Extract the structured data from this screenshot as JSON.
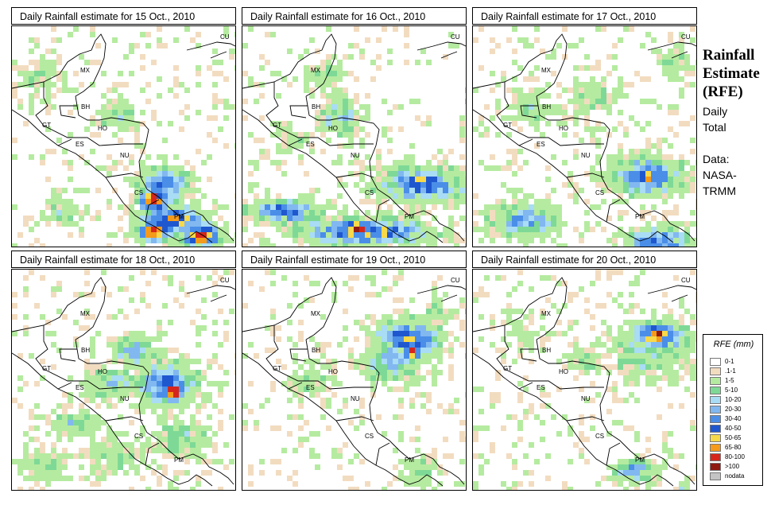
{
  "panels": [
    {
      "title": "Daily Rainfall estimate for  15 Oct., 2010",
      "seed": 15,
      "blobs": [
        [
          190,
          195,
          30,
          22,
          4.0
        ],
        [
          175,
          215,
          18,
          14,
          6.5
        ],
        [
          200,
          240,
          40,
          18,
          5.0
        ],
        [
          175,
          255,
          20,
          12,
          6.8
        ],
        [
          235,
          260,
          25,
          14,
          6.2
        ],
        [
          230,
          285,
          35,
          12,
          6.5
        ],
        [
          130,
          110,
          25,
          18,
          2.2
        ],
        [
          30,
          60,
          25,
          20,
          1.5
        ],
        [
          60,
          230,
          25,
          20,
          1.8
        ]
      ]
    },
    {
      "title": "Daily Rainfall estimate for  16 Oct., 2010",
      "seed": 16,
      "blobs": [
        [
          225,
          195,
          55,
          22,
          4.2
        ],
        [
          220,
          190,
          20,
          10,
          5.6
        ],
        [
          150,
          255,
          80,
          16,
          4.8
        ],
        [
          140,
          250,
          20,
          10,
          6.6
        ],
        [
          50,
          230,
          45,
          14,
          4.5
        ],
        [
          120,
          110,
          25,
          25,
          2.6
        ],
        [
          100,
          60,
          25,
          20,
          1.6
        ],
        [
          60,
          140,
          20,
          15,
          1.8
        ]
      ]
    },
    {
      "title": "Daily Rainfall estimate for  17 Oct., 2010",
      "seed": 17,
      "blobs": [
        [
          215,
          185,
          45,
          24,
          4.2
        ],
        [
          215,
          190,
          10,
          8,
          5.6
        ],
        [
          230,
          270,
          40,
          20,
          4.3
        ],
        [
          60,
          240,
          45,
          22,
          3.2
        ],
        [
          150,
          85,
          30,
          20,
          1.8
        ],
        [
          70,
          100,
          30,
          20,
          1.6
        ],
        [
          250,
          40,
          20,
          20,
          1.7
        ]
      ]
    },
    {
      "title": "Daily Rainfall estimate for  18 Oct., 2010",
      "seed": 18,
      "blobs": [
        [
          190,
          140,
          40,
          26,
          4.0
        ],
        [
          200,
          150,
          15,
          12,
          6.5
        ],
        [
          150,
          100,
          25,
          20,
          3.0
        ],
        [
          120,
          140,
          30,
          20,
          2.8
        ],
        [
          80,
          190,
          30,
          15,
          2.5
        ],
        [
          35,
          240,
          25,
          20,
          2.0
        ],
        [
          210,
          210,
          40,
          30,
          1.8
        ],
        [
          130,
          230,
          40,
          25,
          1.6
        ]
      ]
    },
    {
      "title": "Daily Rainfall estimate for  19 Oct., 2010",
      "seed": 19,
      "blobs": [
        [
          205,
          85,
          40,
          25,
          4.6
        ],
        [
          210,
          100,
          15,
          12,
          5.8
        ],
        [
          190,
          110,
          30,
          30,
          3.0
        ],
        [
          170,
          120,
          25,
          20,
          2.4
        ],
        [
          80,
          140,
          30,
          20,
          1.6
        ],
        [
          240,
          50,
          20,
          20,
          1.6
        ],
        [
          220,
          250,
          20,
          20,
          1.8
        ]
      ]
    },
    {
      "title": "Daily Rainfall estimate for  20 Oct., 2010",
      "seed": 20,
      "blobs": [
        [
          230,
          80,
          35,
          18,
          5.0
        ],
        [
          228,
          80,
          20,
          10,
          6.9
        ],
        [
          220,
          100,
          50,
          30,
          2.4
        ],
        [
          200,
          250,
          25,
          15,
          3.6
        ],
        [
          260,
          280,
          10,
          10,
          4.0
        ],
        [
          140,
          110,
          25,
          20,
          1.6
        ],
        [
          60,
          80,
          25,
          20,
          1.4
        ]
      ]
    }
  ],
  "region_labels": [
    "MX",
    "CU",
    "BH",
    "GT",
    "HO",
    "ES",
    "NU",
    "CS",
    "PM"
  ],
  "side": {
    "title_lines": [
      "Rainfall",
      "Estimate",
      "(RFE)"
    ],
    "daily_lines": [
      "Daily",
      "Total"
    ],
    "data_lines": [
      "Data:",
      "NASA-",
      "TRMM"
    ]
  },
  "legend": {
    "title": "RFE (mm)",
    "items": [
      {
        "label": "0-1",
        "color": "#ffffff"
      },
      {
        "label": ".1-1",
        "color": "#f2dcc0"
      },
      {
        "label": "1-5",
        "color": "#b5eba0"
      },
      {
        "label": "5-10",
        "color": "#7ed996"
      },
      {
        "label": "10-20",
        "color": "#a9dcf5"
      },
      {
        "label": "20-30",
        "color": "#82b8f0"
      },
      {
        "label": "30-40",
        "color": "#4a8ee8"
      },
      {
        "label": "40-50",
        "color": "#1f57cf"
      },
      {
        "label": "50-65",
        "color": "#f7d94a"
      },
      {
        "label": "65-80",
        "color": "#f59a1a"
      },
      {
        "label": "80-100",
        "color": "#d6261b"
      },
      {
        "label": ">100",
        "color": "#8e1a12"
      },
      {
        "label": "nodata",
        "color": "#c4c4c4"
      }
    ]
  }
}
